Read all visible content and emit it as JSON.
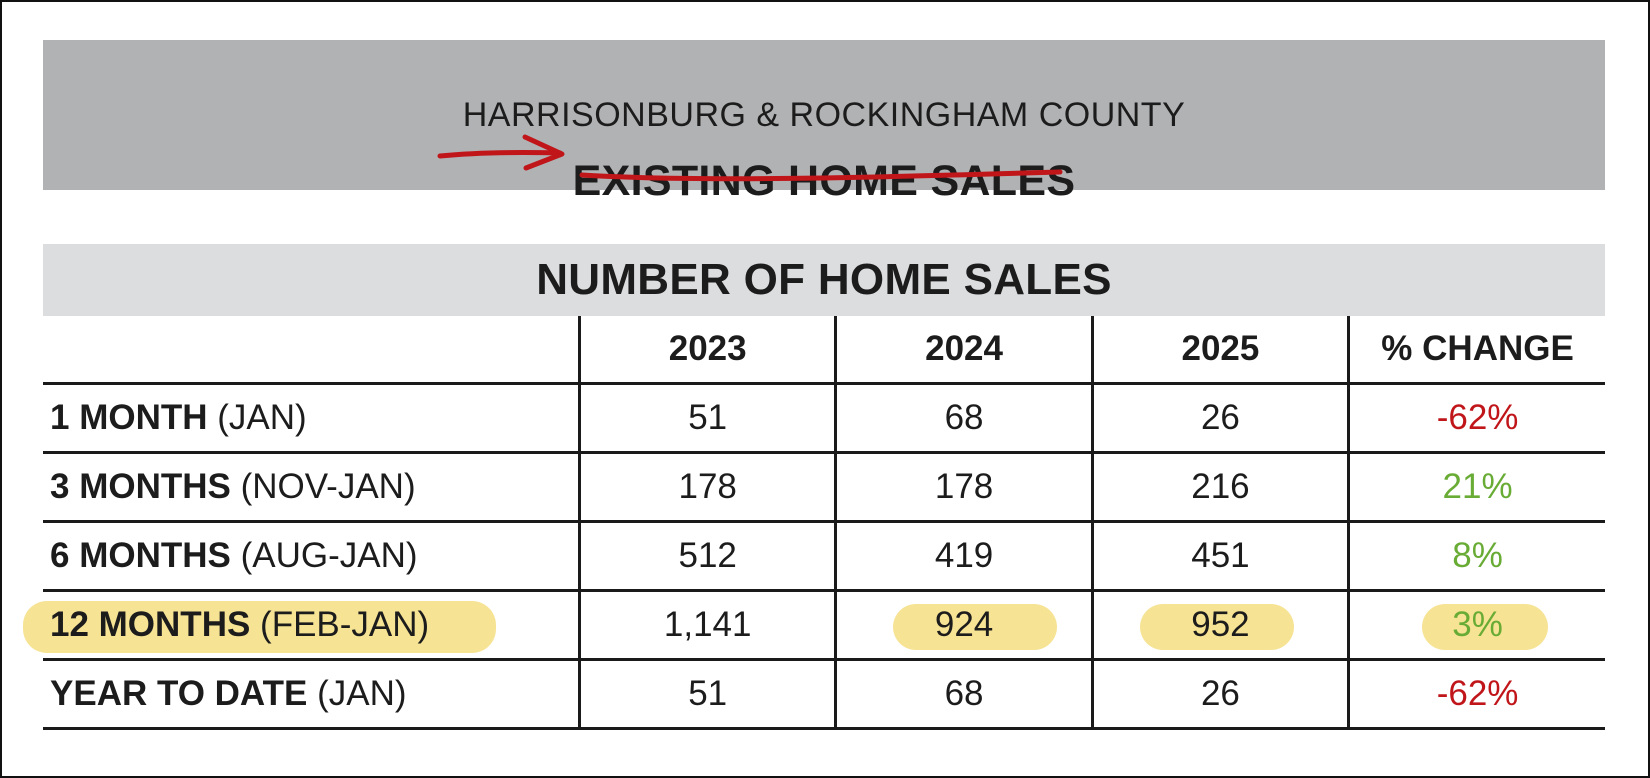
{
  "banner": {
    "subtitle": "HARRISONBURG & ROCKINGHAM COUNTY",
    "title": "EXISTING HOME SALES"
  },
  "table": {
    "heading": "NUMBER OF HOME SALES",
    "columns": [
      "",
      "2023",
      "2024",
      "2025",
      "% CHANGE"
    ],
    "rows": [
      {
        "label_bold": "1 MONTH",
        "label_paren": "(JAN)",
        "v2023": "51",
        "v2024": "68",
        "v2025": "26",
        "change": "-62%",
        "change_dir": "neg",
        "highlighted": false
      },
      {
        "label_bold": "3 MONTHS",
        "label_paren": "(NOV-JAN)",
        "v2023": "178",
        "v2024": "178",
        "v2025": "216",
        "change": "21%",
        "change_dir": "pos",
        "highlighted": false
      },
      {
        "label_bold": "6 MONTHS",
        "label_paren": "(AUG-JAN)",
        "v2023": "512",
        "v2024": "419",
        "v2025": "451",
        "change": "8%",
        "change_dir": "pos",
        "highlighted": false
      },
      {
        "label_bold": "12 MONTHS",
        "label_paren": "(FEB-JAN)",
        "v2023": "1,141",
        "v2024": "924",
        "v2025": "952",
        "change": "3%",
        "change_dir": "pos",
        "highlighted": true
      },
      {
        "label_bold": "YEAR TO DATE",
        "label_paren": "(JAN)",
        "v2023": "51",
        "v2024": "68",
        "v2025": "26",
        "change": "-62%",
        "change_dir": "neg",
        "highlighted": false
      }
    ]
  },
  "colors": {
    "negative": "#c0161a",
    "positive": "#69ac35",
    "highlight": "#f6e394",
    "annotation_ink": "#c0161a",
    "banner_bg": "#b1b2b4",
    "table_heading_bg": "#dcdddf"
  },
  "annotations": {
    "arrow": "red-arrow-icon",
    "underline": "red-underline-icon"
  }
}
